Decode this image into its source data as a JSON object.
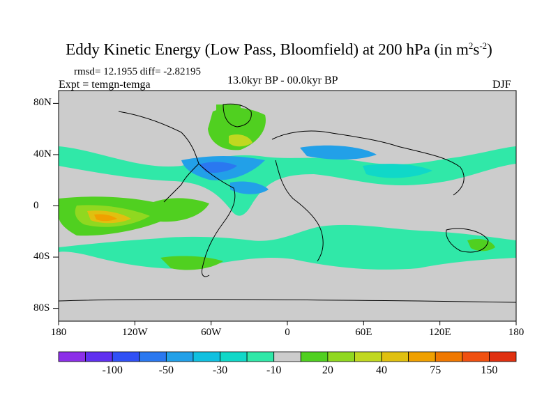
{
  "header": {
    "title_main": "Eddy Kinetic Energy (Low Pass, Bloomfield) at 200 hPa (in m",
    "title_sup1": "2",
    "title_mid": "s",
    "title_sup2": "-2",
    "title_end": ")",
    "stats": "rmsd= 12.1955 diff= -2.82195",
    "experiment": "Expt = temgn-temga",
    "center_label": "13.0kyr BP - 00.0kyr BP",
    "season": "DJF"
  },
  "map": {
    "projection": "cylindrical-equidistant",
    "background_color": "#cccccc",
    "y_axis_labels": [
      "80N",
      "40N",
      "0",
      "40S",
      "80S"
    ],
    "x_axis_labels": [
      "180",
      "120W",
      "60W",
      "0",
      "60E",
      "120E",
      "180"
    ]
  },
  "colorbar": {
    "colors": [
      "#8c2fe8",
      "#6030f0",
      "#3050f5",
      "#2a78f0",
      "#22a0e8",
      "#10c0e0",
      "#10d8c8",
      "#30e8a8",
      "#cccccc",
      "#50d020",
      "#90d820",
      "#c0d820",
      "#e0c010",
      "#f0a000",
      "#f07800",
      "#f05010",
      "#e03010"
    ],
    "labels": [
      "-100",
      "-50",
      "-30",
      "-10",
      "20",
      "40",
      "75",
      "150"
    ]
  }
}
